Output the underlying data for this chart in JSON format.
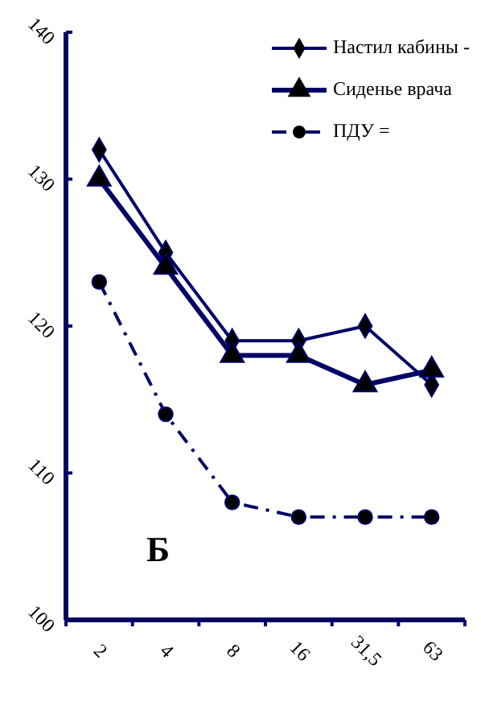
{
  "chart_data": {
    "type": "line",
    "categories": [
      "2",
      "4",
      "8",
      "16",
      "31,5",
      "63"
    ],
    "series": [
      {
        "name": "Настил кабины -",
        "color": "#000066",
        "values": [
          132,
          125,
          119,
          119,
          120,
          116
        ],
        "marker": "diamond",
        "line_style": "solid"
      },
      {
        "name": "Сиденье врача",
        "color": "#000066",
        "values": [
          130,
          124,
          118,
          118,
          116,
          117
        ],
        "marker": "triangle",
        "line_style": "solid"
      },
      {
        "name": "ПДУ =",
        "color": "#000066",
        "values": [
          123,
          114,
          108,
          107,
          107,
          107
        ],
        "marker": "circle",
        "line_style": "dashed"
      }
    ],
    "ylim": [
      100,
      140
    ],
    "yticks": [
      100,
      110,
      120,
      130,
      140
    ],
    "grid": false,
    "legend": "top right",
    "annotations": [
      "Б"
    ]
  }
}
